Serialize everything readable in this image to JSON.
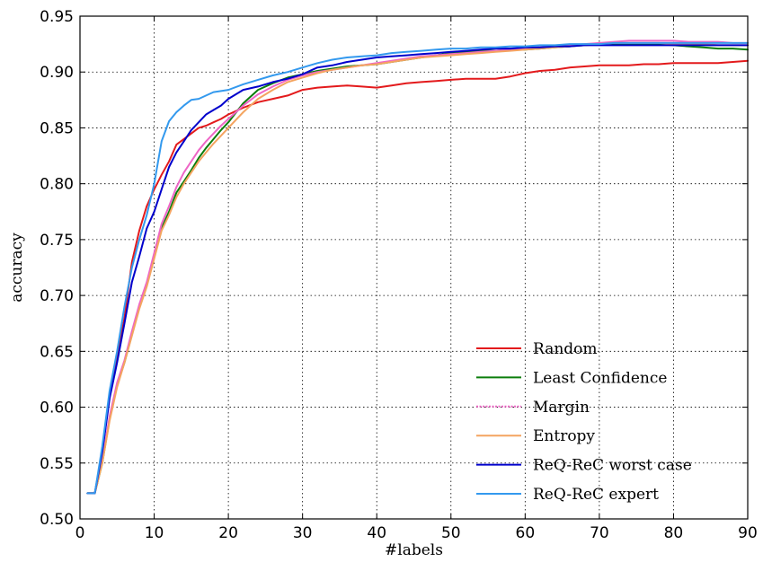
{
  "chart_data": {
    "type": "line",
    "title": "",
    "xlabel": "#labels",
    "ylabel": "accuracy",
    "xlim": [
      0,
      90
    ],
    "ylim": [
      0.5,
      0.95
    ],
    "grid": true,
    "legend_position": "bottom-right",
    "x_ticks": [
      "0",
      "10",
      "20",
      "30",
      "40",
      "50",
      "60",
      "70",
      "80",
      "90"
    ],
    "y_ticks": [
      "0.50",
      "0.55",
      "0.60",
      "0.65",
      "0.70",
      "0.75",
      "0.80",
      "0.85",
      "0.90",
      "0.95"
    ],
    "x": [
      1,
      2,
      3,
      4,
      5,
      6,
      7,
      8,
      9,
      10,
      11,
      12,
      13,
      14,
      15,
      16,
      17,
      18,
      19,
      20,
      22,
      24,
      26,
      28,
      30,
      32,
      34,
      36,
      38,
      40,
      42,
      44,
      46,
      48,
      50,
      52,
      54,
      56,
      58,
      60,
      62,
      64,
      66,
      68,
      70,
      72,
      74,
      76,
      78,
      80,
      82,
      84,
      86,
      88,
      90
    ],
    "series": [
      {
        "name": "Random",
        "color": "#e31a1c",
        "values": [
          0.523,
          0.523,
          0.56,
          0.61,
          0.645,
          0.68,
          0.73,
          0.758,
          0.78,
          0.795,
          0.808,
          0.82,
          0.835,
          0.84,
          0.845,
          0.85,
          0.852,
          0.855,
          0.858,
          0.862,
          0.868,
          0.873,
          0.876,
          0.879,
          0.884,
          0.886,
          0.887,
          0.888,
          0.887,
          0.886,
          0.888,
          0.89,
          0.891,
          0.892,
          0.893,
          0.894,
          0.894,
          0.894,
          0.896,
          0.899,
          0.901,
          0.902,
          0.904,
          0.905,
          0.906,
          0.906,
          0.906,
          0.907,
          0.907,
          0.908,
          0.908,
          0.908,
          0.908,
          0.909,
          0.91
        ]
      },
      {
        "name": "Least Confidence",
        "color": "#0b7d0b",
        "values": [
          0.523,
          0.523,
          0.55,
          0.59,
          0.62,
          0.64,
          0.665,
          0.69,
          0.71,
          0.735,
          0.76,
          0.775,
          0.792,
          0.802,
          0.812,
          0.823,
          0.832,
          0.84,
          0.848,
          0.855,
          0.872,
          0.884,
          0.89,
          0.895,
          0.898,
          0.901,
          0.903,
          0.905,
          0.906,
          0.907,
          0.909,
          0.911,
          0.913,
          0.915,
          0.917,
          0.918,
          0.919,
          0.919,
          0.92,
          0.92,
          0.921,
          0.922,
          0.923,
          0.924,
          0.925,
          0.925,
          0.925,
          0.925,
          0.925,
          0.924,
          0.923,
          0.922,
          0.921,
          0.921,
          0.92
        ]
      },
      {
        "name": "Margin",
        "color": "#ee66c6",
        "values": [
          0.523,
          0.523,
          0.552,
          0.592,
          0.622,
          0.642,
          0.668,
          0.692,
          0.712,
          0.738,
          0.764,
          0.78,
          0.797,
          0.81,
          0.82,
          0.83,
          0.838,
          0.845,
          0.852,
          0.858,
          0.87,
          0.88,
          0.887,
          0.893,
          0.897,
          0.9,
          0.902,
          0.904,
          0.906,
          0.908,
          0.91,
          0.912,
          0.914,
          0.915,
          0.916,
          0.917,
          0.918,
          0.919,
          0.92,
          0.921,
          0.922,
          0.923,
          0.924,
          0.925,
          0.926,
          0.927,
          0.928,
          0.928,
          0.928,
          0.928,
          0.927,
          0.927,
          0.927,
          0.926,
          0.926
        ]
      },
      {
        "name": "Entropy",
        "color": "#f4a460",
        "values": [
          0.523,
          0.523,
          0.55,
          0.588,
          0.618,
          0.64,
          0.664,
          0.688,
          0.708,
          0.733,
          0.758,
          0.772,
          0.788,
          0.8,
          0.81,
          0.82,
          0.828,
          0.836,
          0.843,
          0.85,
          0.864,
          0.876,
          0.884,
          0.891,
          0.895,
          0.899,
          0.902,
          0.904,
          0.906,
          0.907,
          0.909,
          0.911,
          0.913,
          0.914,
          0.915,
          0.916,
          0.917,
          0.918,
          0.919,
          0.92,
          0.921,
          0.922,
          0.923,
          0.924,
          0.925,
          0.926,
          0.926,
          0.926,
          0.926,
          0.925,
          0.925,
          0.925,
          0.924,
          0.924,
          0.924
        ]
      },
      {
        "name": "ReQ-ReC worst case",
        "color": "#0000cc",
        "values": [
          0.523,
          0.523,
          0.56,
          0.608,
          0.64,
          0.675,
          0.712,
          0.735,
          0.76,
          0.775,
          0.795,
          0.815,
          0.828,
          0.838,
          0.848,
          0.855,
          0.862,
          0.866,
          0.87,
          0.876,
          0.884,
          0.887,
          0.891,
          0.894,
          0.898,
          0.904,
          0.906,
          0.909,
          0.911,
          0.913,
          0.914,
          0.915,
          0.916,
          0.917,
          0.918,
          0.919,
          0.92,
          0.921,
          0.921,
          0.922,
          0.922,
          0.923,
          0.923,
          0.924,
          0.924,
          0.924,
          0.924,
          0.924,
          0.924,
          0.924,
          0.924,
          0.924,
          0.924,
          0.924,
          0.924
        ]
      },
      {
        "name": "ReQ-ReC expert",
        "color": "#3399ee",
        "values": [
          0.523,
          0.523,
          0.565,
          0.615,
          0.65,
          0.69,
          0.725,
          0.75,
          0.772,
          0.8,
          0.838,
          0.856,
          0.864,
          0.87,
          0.875,
          0.876,
          0.879,
          0.882,
          0.883,
          0.884,
          0.889,
          0.893,
          0.897,
          0.9,
          0.904,
          0.908,
          0.911,
          0.913,
          0.914,
          0.915,
          0.917,
          0.918,
          0.919,
          0.92,
          0.921,
          0.921,
          0.922,
          0.922,
          0.923,
          0.923,
          0.924,
          0.924,
          0.925,
          0.925,
          0.925,
          0.926,
          0.926,
          0.926,
          0.926,
          0.926,
          0.926,
          0.926,
          0.926,
          0.926,
          0.926
        ]
      }
    ]
  }
}
